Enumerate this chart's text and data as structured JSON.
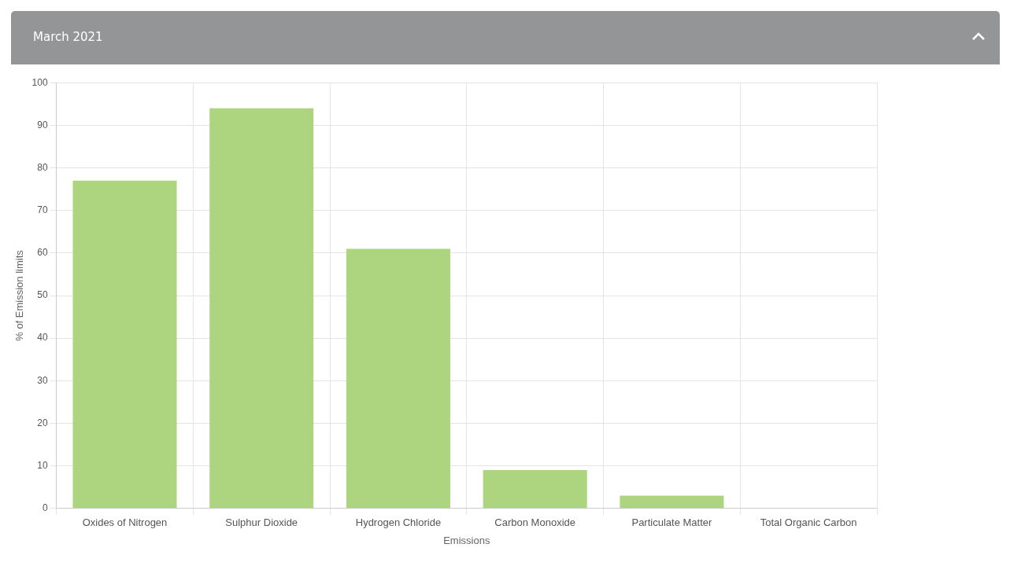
{
  "chart_data": {
    "type": "bar",
    "title": "March 2021",
    "xlabel": "Emissions",
    "ylabel": "% of Emission limits",
    "categories": [
      "Oxides of Nitrogen",
      "Sulphur Dioxide",
      "Hydrogen Chloride",
      "Carbon Monoxide",
      "Particulate Matter",
      "Total Organic Carbon"
    ],
    "values": [
      77,
      94,
      61,
      9,
      3,
      0
    ],
    "color": "#add580",
    "ylim": [
      0,
      100
    ],
    "yticks": [
      0,
      10,
      20,
      30,
      40,
      50,
      60,
      70,
      80,
      90,
      100
    ],
    "grid": true
  }
}
